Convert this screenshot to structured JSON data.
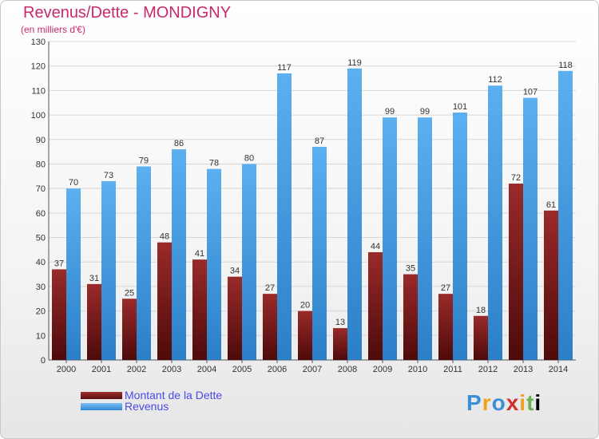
{
  "chart_data": {
    "type": "bar",
    "title": "Revenus/Dette - MONDIGNY",
    "subtitle": "(en milliers d'€)",
    "categories": [
      "2000",
      "2001",
      "2002",
      "2003",
      "2004",
      "2005",
      "2006",
      "2007",
      "2008",
      "2009",
      "2010",
      "2011",
      "2012",
      "2013",
      "2014"
    ],
    "series": [
      {
        "name": "Montant de la Dette",
        "color": "#7a1c1c",
        "values": [
          37,
          31,
          25,
          48,
          41,
          34,
          27,
          20,
          13,
          44,
          35,
          27,
          18,
          72,
          61
        ]
      },
      {
        "name": "Revenus",
        "color": "#4aa0e6",
        "values": [
          70,
          73,
          79,
          86,
          78,
          80,
          117,
          87,
          119,
          99,
          99,
          101,
          112,
          107,
          118
        ]
      }
    ],
    "yticks": [
      0,
      10,
      20,
      30,
      40,
      50,
      60,
      70,
      80,
      90,
      100,
      110,
      120,
      130
    ],
    "ylim": [
      0,
      130
    ],
    "grid": true,
    "legend_position": "bottom-left"
  },
  "logo": [
    "P",
    "r",
    "o",
    "x",
    "i",
    "t",
    "i"
  ]
}
